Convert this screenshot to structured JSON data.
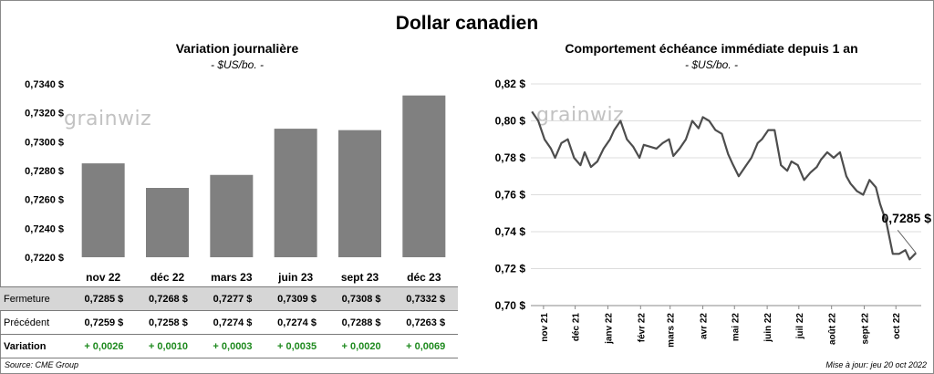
{
  "title": "Dollar canadien",
  "chart_data": [
    {
      "type": "bar",
      "title": "Variation  journalière",
      "subtitle": "- $US/bo. -",
      "categories": [
        "nov 22",
        "déc 22",
        "mars 23",
        "juin 23",
        "sept 23",
        "déc 23"
      ],
      "values": [
        0.7285,
        0.7268,
        0.7277,
        0.7309,
        0.7308,
        0.7332
      ],
      "ylim": [
        0.722,
        0.734
      ],
      "yticks": [
        "0,7220 $",
        "0,7240 $",
        "0,7260 $",
        "0,7280 $",
        "0,7300 $",
        "0,7320 $",
        "0,7340 $"
      ],
      "bar_color": "#808080",
      "watermark": "grainwiz"
    },
    {
      "type": "line",
      "title": "Comportement échéance immédiate depuis 1 an",
      "subtitle": "- $US/bo. -",
      "ylim": [
        0.7,
        0.82
      ],
      "yticks": [
        "0,70 $",
        "0,72 $",
        "0,74 $",
        "0,76 $",
        "0,78 $",
        "0,80 $",
        "0,82 $"
      ],
      "xticks": [
        "nov 21",
        "déc 21",
        "janv 22",
        "févr 22",
        "mars 22",
        "avr 22",
        "mai 22",
        "juin 22",
        "juil 22",
        "août 22",
        "sept 22",
        "oct 22"
      ],
      "last_label": "0,7285 $",
      "line_color": "#4d4d4d",
      "watermark": "grainwiz",
      "series": [
        {
          "x": [
            "2021-10-21",
            "2021-10-27",
            "2021-11-02",
            "2021-11-08",
            "2021-11-12",
            "2021-11-18",
            "2021-11-24",
            "2021-11-30",
            "2021-12-06",
            "2021-12-10",
            "2021-12-16",
            "2021-12-22",
            "2021-12-28",
            "2022-01-03",
            "2022-01-07",
            "2022-01-13",
            "2022-01-19",
            "2022-01-25",
            "2022-01-31",
            "2022-02-04",
            "2022-02-10",
            "2022-02-16",
            "2022-02-22",
            "2022-02-28",
            "2022-03-04",
            "2022-03-10",
            "2022-03-16",
            "2022-03-22",
            "2022-03-28",
            "2022-04-01",
            "2022-04-07",
            "2022-04-13",
            "2022-04-19",
            "2022-04-25",
            "2022-04-29",
            "2022-05-05",
            "2022-05-11",
            "2022-05-17",
            "2022-05-23",
            "2022-05-27",
            "2022-06-02",
            "2022-06-08",
            "2022-06-14",
            "2022-06-20",
            "2022-06-24",
            "2022-06-30",
            "2022-07-06",
            "2022-07-12",
            "2022-07-18",
            "2022-07-22",
            "2022-07-28",
            "2022-08-03",
            "2022-08-09",
            "2022-08-15",
            "2022-08-19",
            "2022-08-25",
            "2022-08-31",
            "2022-09-06",
            "2022-09-12",
            "2022-09-16",
            "2022-09-22",
            "2022-09-28",
            "2022-10-04",
            "2022-10-10",
            "2022-10-14",
            "2022-10-20"
          ],
          "y": [
            0.805,
            0.8,
            0.79,
            0.785,
            0.78,
            0.788,
            0.79,
            0.78,
            0.776,
            0.783,
            0.775,
            0.778,
            0.785,
            0.79,
            0.795,
            0.8,
            0.79,
            0.786,
            0.78,
            0.787,
            0.786,
            0.785,
            0.788,
            0.79,
            0.781,
            0.785,
            0.79,
            0.8,
            0.796,
            0.802,
            0.8,
            0.795,
            0.793,
            0.782,
            0.777,
            0.77,
            0.775,
            0.78,
            0.788,
            0.79,
            0.795,
            0.795,
            0.776,
            0.773,
            0.778,
            0.776,
            0.768,
            0.772,
            0.775,
            0.779,
            0.783,
            0.78,
            0.783,
            0.77,
            0.766,
            0.762,
            0.76,
            0.768,
            0.764,
            0.755,
            0.745,
            0.728,
            0.728,
            0.73,
            0.725,
            0.7285
          ]
        }
      ]
    }
  ],
  "table": {
    "rows": [
      {
        "label": "Fermeture",
        "values": [
          "0,7285  $",
          "0,7268  $",
          "0,7277  $",
          "0,7309  $",
          "0,7308  $",
          "0,7332  $"
        ]
      },
      {
        "label": "Précédent",
        "values": [
          "0,7259  $",
          "0,7258  $",
          "0,7274  $",
          "0,7274  $",
          "0,7288  $",
          "0,7263  $"
        ]
      },
      {
        "label": "Variation",
        "values": [
          "+ 0,0026",
          "+ 0,0010",
          "+ 0,0003",
          "+ 0,0035",
          "+ 0,0020",
          "+ 0,0069"
        ]
      }
    ]
  },
  "footer": {
    "source": "Source: CME Group",
    "updated": "Mise à jour: jeu 20 oct 2022"
  }
}
